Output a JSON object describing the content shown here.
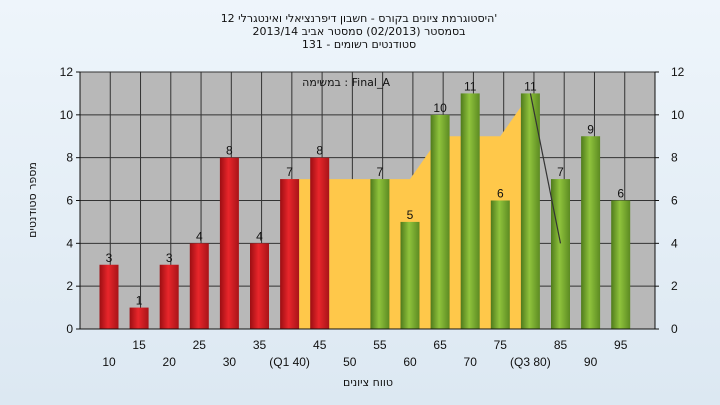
{
  "title_lines": [
    "היסטוגרמת ציונים בקורס - חשבון דיפרנציאלי ואינטגרלי 12'",
    "בסמסטר  (02/2013)  סמסטר אביב 2013/14",
    "סטודנטים רשומים - 131"
  ],
  "colors": {
    "red_bar": "#e8262b",
    "green_bar": "#8fc33c",
    "area_fill": "#ffc84a",
    "plot_bg": "#b8b8b8",
    "grid": "#333333"
  },
  "chart_data": {
    "type": "bar",
    "x": [
      10,
      15,
      20,
      25,
      30,
      35,
      40,
      45,
      50,
      55,
      60,
      65,
      70,
      75,
      80,
      85,
      90,
      95
    ],
    "values": [
      3,
      1,
      3,
      4,
      8,
      4,
      7,
      8,
      null,
      7,
      5,
      10,
      11,
      6,
      11,
      7,
      9,
      6
    ],
    "bar_color_groups": [
      "red",
      "red",
      "red",
      "red",
      "red",
      "red",
      "red",
      "red",
      null,
      "green",
      "green",
      "green",
      "green",
      "green",
      "green",
      "green",
      "green",
      "green"
    ],
    "tick_labels_lower": [
      "10",
      "20",
      "30",
      "(Q1 40)",
      "50",
      "60",
      "70",
      "(Q3 80)",
      "90"
    ],
    "tick_labels_upper": [
      "15",
      "25",
      "35",
      "45",
      "55",
      "65",
      "75",
      "85",
      "95"
    ],
    "area": {
      "x": [
        40,
        45,
        50,
        55,
        60,
        65,
        70,
        75,
        80
      ],
      "y": [
        7,
        7,
        7,
        7,
        7,
        9,
        9,
        9,
        11
      ]
    },
    "line": {
      "x": [
        80,
        85
      ],
      "y": [
        11,
        4
      ]
    },
    "annotation": "במשימה : Final_A",
    "xlabel": "טווח ציונים",
    "ylabel": "מספר סטודנטים",
    "ylim": [
      0,
      12
    ],
    "yticks": [
      0,
      2,
      4,
      6,
      8,
      10,
      12
    ],
    "grid": true,
    "right_axis": true
  }
}
